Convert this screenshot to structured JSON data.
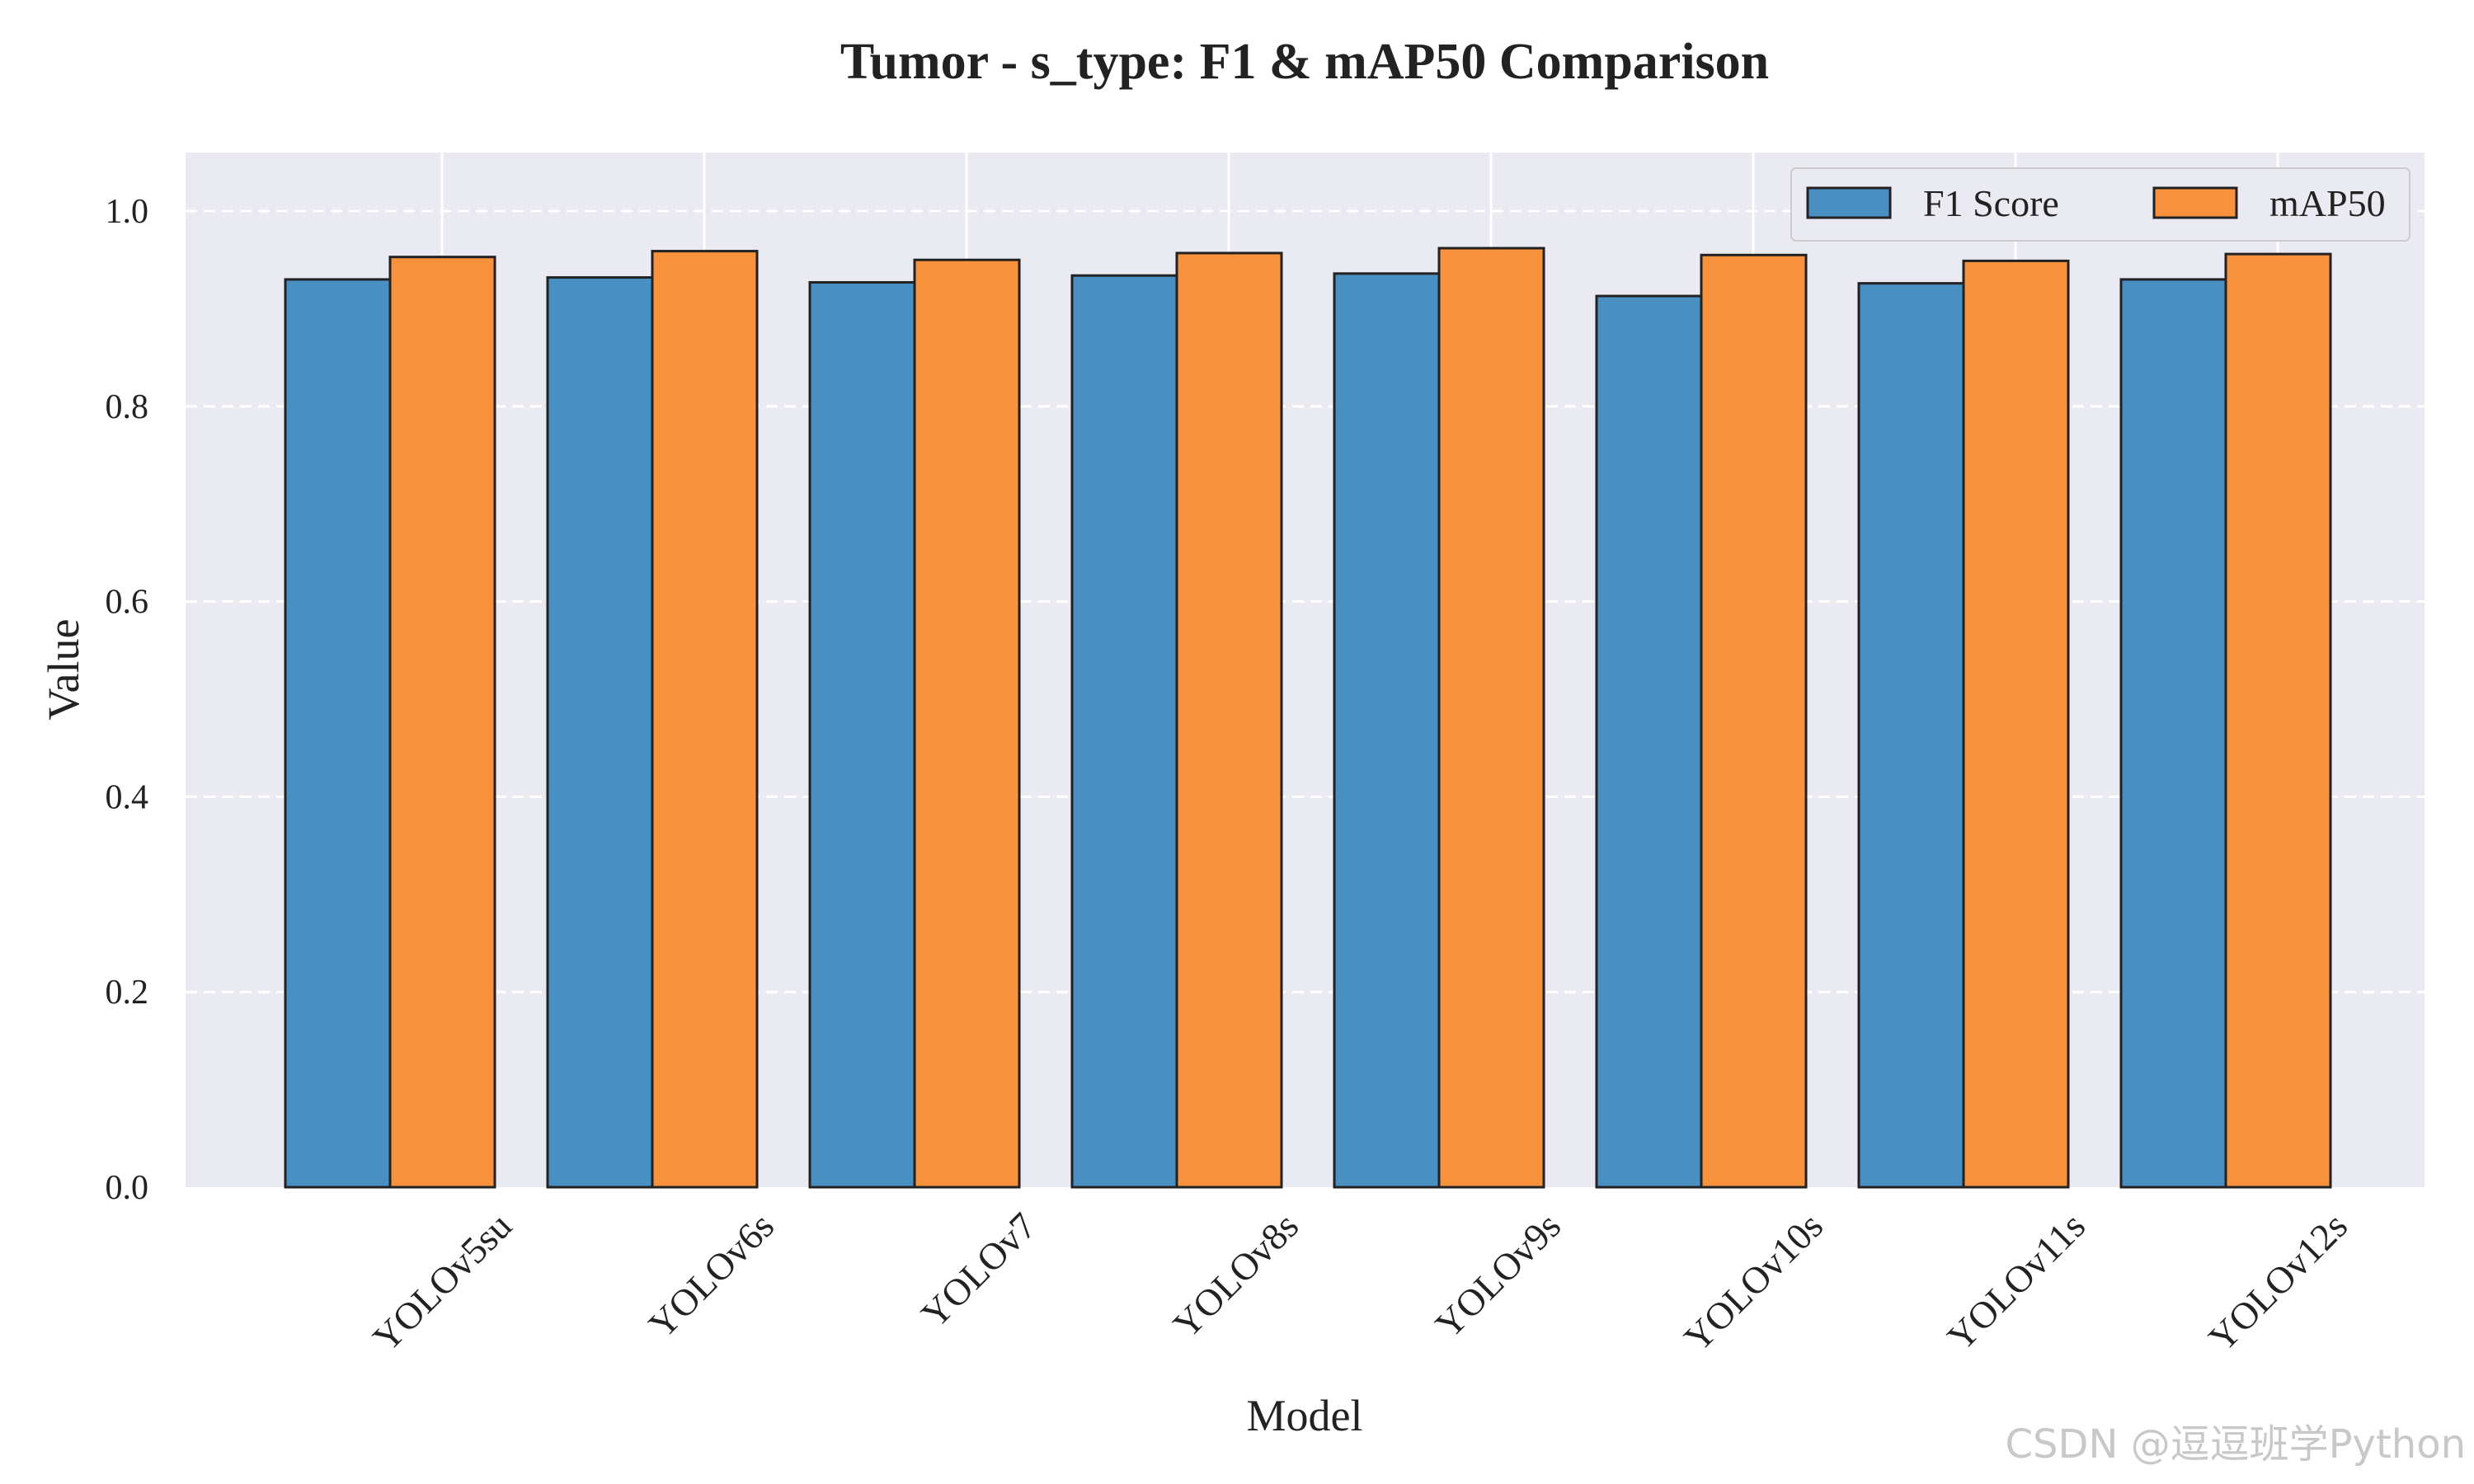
{
  "colors": {
    "plot_bg": "#eaeaf2",
    "grid": "#ffffff",
    "f1": "#4a8fc2",
    "map50": "#f8923c",
    "edge": "#222222"
  },
  "watermark": "CSDN @逗逗班学Python",
  "chart_data": {
    "type": "bar",
    "title": "Tumor - s_type: F1 & mAP50 Comparison",
    "xlabel": "Model",
    "ylabel": "Value",
    "ylim": [
      0,
      1.06
    ],
    "yticks": [
      "0.0",
      "0.2",
      "0.4",
      "0.6",
      "0.8",
      "1.0"
    ],
    "grid": true,
    "legend_position": "top-right",
    "categories": [
      "YOLOv5su",
      "YOLOv6s",
      "YOLOv7",
      "YOLOv8s",
      "YOLOv9s",
      "YOLOv10s",
      "YOLOv11s",
      "YOLOv12s"
    ],
    "series": [
      {
        "name": "F1 Score",
        "values": [
          0.93,
          0.932,
          0.927,
          0.934,
          0.936,
          0.913,
          0.926,
          0.93
        ]
      },
      {
        "name": "mAP50",
        "values": [
          0.953,
          0.959,
          0.95,
          0.957,
          0.962,
          0.955,
          0.949,
          0.956
        ]
      }
    ]
  }
}
